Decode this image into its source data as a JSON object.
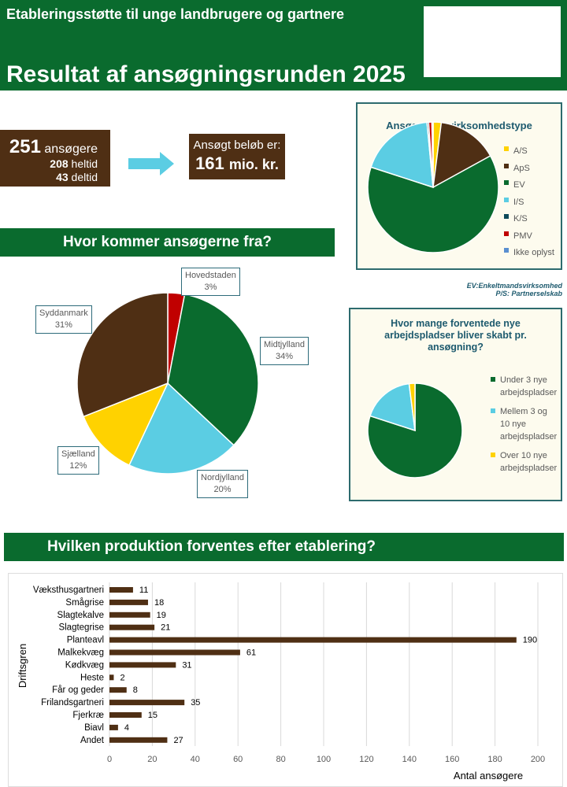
{
  "header": {
    "subtitle": "Etableringsstøtte til unge landbrugere og gartnere",
    "title": "Resultat af ansøgningsrunden 2025"
  },
  "summary": {
    "applicants_count": "251",
    "applicants_label": "ansøgere",
    "fulltime_count": "208",
    "fulltime_label": "heltid",
    "parttime_count": "43",
    "parttime_label": "deltid",
    "amount_label": "Ansøgt beløb er:",
    "amount_value": "161",
    "amount_unit": "mio. kr."
  },
  "colors": {
    "green": "#0a6b2e",
    "brown": "#4f2f14",
    "cyan": "#5bcde3",
    "yellow": "#ffd200",
    "red": "#c00000",
    "teal": "#1d5a6e",
    "navy": "#0d4a5a",
    "blue": "#5a8fd0"
  },
  "footnote": [
    "EV:Enkeltmandsvirksomhed",
    "P/S: Partnerselskab"
  ],
  "chart_data": [
    {
      "type": "pie",
      "title": "Hvor kommer ansøgerne fra?",
      "unit": "%",
      "slices": [
        {
          "label": "Hovedstaden",
          "value": 3,
          "display": "3%",
          "color": "#c00000"
        },
        {
          "label": "Midtjylland",
          "value": 34,
          "display": "34%",
          "color": "#0a6b2e"
        },
        {
          "label": "Nordjylland",
          "value": 20,
          "display": "20%",
          "color": "#5bcde3"
        },
        {
          "label": "Sjælland",
          "value": 12,
          "display": "12%",
          "color": "#ffd200"
        },
        {
          "label": "Syddanmark",
          "value": 31,
          "display": "31%",
          "color": "#4f2f14"
        }
      ]
    },
    {
      "type": "pie",
      "title": "Ansøgernes virksomhedstype",
      "legend": "right",
      "slices": [
        {
          "label": "A/S",
          "value": 2,
          "color": "#ffd200"
        },
        {
          "label": "ApS",
          "value": 15,
          "color": "#4f2f14"
        },
        {
          "label": "EV",
          "value": 63,
          "color": "#0a6b2e"
        },
        {
          "label": "I/S",
          "value": 18.5,
          "color": "#5bcde3"
        },
        {
          "label": "K/S",
          "value": 0.4,
          "color": "#0d4a5a"
        },
        {
          "label": "PMV",
          "value": 0.8,
          "color": "#c00000"
        },
        {
          "label": "Ikke oplyst",
          "value": 0.3,
          "color": "#5a8fd0"
        }
      ]
    },
    {
      "type": "pie",
      "title": "Hvor mange forventede nye arbejdspladser bliver skabt pr. ansøgning?",
      "legend": "right",
      "slices": [
        {
          "label": "Under 3 nye arbejdspladser",
          "value": 80,
          "color": "#0a6b2e"
        },
        {
          "label": "Mellem 3 og 10 nye arbejdspladser",
          "value": 18,
          "color": "#5bcde3"
        },
        {
          "label": "Over 10 nye arbejdspladser",
          "value": 2,
          "color": "#ffd200"
        }
      ]
    },
    {
      "type": "bar",
      "orientation": "horizontal",
      "title": "Hvilken produktion forventes efter etablering?",
      "xlabel": "Antal ansøgere",
      "ylabel": "Driftsgren",
      "xlim": [
        0,
        200
      ],
      "xticks": [
        0,
        20,
        40,
        60,
        80,
        100,
        120,
        140,
        160,
        180,
        200
      ],
      "grid": "vertical",
      "color": "#4f2f14",
      "categories": [
        "Væksthusgartneri",
        "Smågrise",
        "Slagtekalve",
        "Slagtegrise",
        "Planteavl",
        "Malkekvæg",
        "Kødkvæg",
        "Heste",
        "Får og geder",
        "Frilandsgartneri",
        "Fjerkræ",
        "Biavl",
        "Andet"
      ],
      "values": [
        11,
        18,
        19,
        21,
        190,
        61,
        31,
        2,
        8,
        35,
        15,
        4,
        27
      ]
    }
  ]
}
